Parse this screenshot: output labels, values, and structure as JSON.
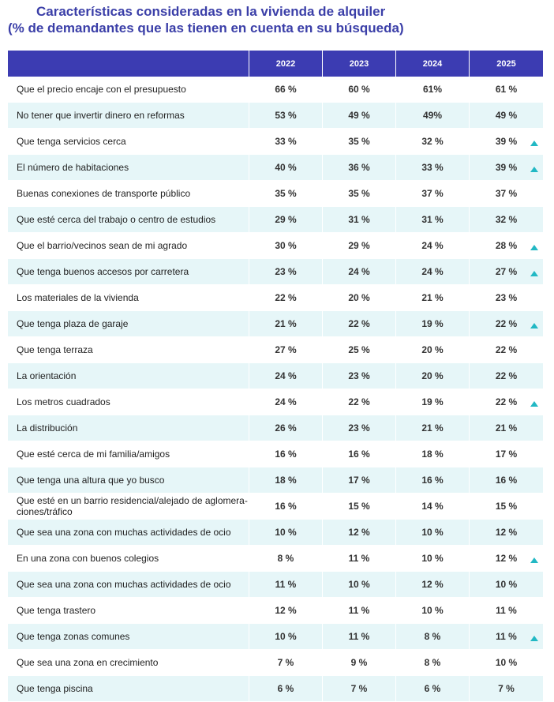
{
  "title": {
    "line1": "Características consideradas en la vivienda de alquiler",
    "line2": "(% de demandantes que las tienen en cuenta en su búsqueda)"
  },
  "columns": [
    "",
    "2022",
    "2023",
    "2024",
    "2025"
  ],
  "accent_color": "#3c3cb2",
  "increase_icon_color": "#22b8c4",
  "rows": [
    {
      "label": "Que el precio encaje con el presupuesto",
      "v2022": "66 %",
      "v2023": "60 %",
      "v2024": "61%",
      "v2025": "61 %",
      "up": false
    },
    {
      "label": "No tener que invertir dinero en reformas",
      "v2022": "53 %",
      "v2023": "49 %",
      "v2024": "49%",
      "v2025": "49 %",
      "up": false
    },
    {
      "label": "Que tenga servicios cerca",
      "v2022": "33 %",
      "v2023": "35 %",
      "v2024": "32 %",
      "v2025": "39 %",
      "up": true
    },
    {
      "label": "El número de habitaciones",
      "v2022": "40 %",
      "v2023": "36 %",
      "v2024": "33 %",
      "v2025": "39 %",
      "up": true
    },
    {
      "label": "Buenas conexiones de transporte público",
      "v2022": "35 %",
      "v2023": "35 %",
      "v2024": "37 %",
      "v2025": "37 %",
      "up": false
    },
    {
      "label": "Que esté cerca del trabajo o centro de estudios",
      "v2022": "29 %",
      "v2023": "31 %",
      "v2024": "31 %",
      "v2025": "32 %",
      "up": false
    },
    {
      "label": "Que el barrio/vecinos sean de mi agrado",
      "v2022": "30 %",
      "v2023": "29 %",
      "v2024": "24 %",
      "v2025": "28 %",
      "up": true
    },
    {
      "label": "Que tenga buenos accesos por carretera",
      "v2022": "23 %",
      "v2023": "24 %",
      "v2024": "24 %",
      "v2025": "27 %",
      "up": true
    },
    {
      "label": "Los materiales de la vivienda",
      "v2022": "22 %",
      "v2023": "20 %",
      "v2024": "21 %",
      "v2025": "23 %",
      "up": false
    },
    {
      "label": "Que tenga plaza de garaje",
      "v2022": "21 %",
      "v2023": "22 %",
      "v2024": "19 %",
      "v2025": "22 %",
      "up": true
    },
    {
      "label": "Que tenga terraza",
      "v2022": "27 %",
      "v2023": "25 %",
      "v2024": "20 %",
      "v2025": "22 %",
      "up": false
    },
    {
      "label": "La orientación",
      "v2022": "24 %",
      "v2023": "23 %",
      "v2024": "20 %",
      "v2025": "22 %",
      "up": false
    },
    {
      "label": "Los metros cuadrados",
      "v2022": "24 %",
      "v2023": "22 %",
      "v2024": "19 %",
      "v2025": "22 %",
      "up": true
    },
    {
      "label": "La distribución",
      "v2022": "26 %",
      "v2023": "23 %",
      "v2024": "21 %",
      "v2025": "21 %",
      "up": false
    },
    {
      "label": "Que esté cerca de mi familia/amigos",
      "v2022": "16 %",
      "v2023": "16 %",
      "v2024": "18 %",
      "v2025": "17 %",
      "up": false
    },
    {
      "label": "Que tenga una altura que yo busco",
      "v2022": "18 %",
      "v2023": "17 %",
      "v2024": "16 %",
      "v2025": "16 %",
      "up": false
    },
    {
      "label": "Que esté en un barrio residencial/alejado de aglomera-ciones/tráfico",
      "v2022": "16 %",
      "v2023": "15 %",
      "v2024": "14 %",
      "v2025": "15 %",
      "up": false
    },
    {
      "label": "Que sea una zona con muchas actividades de ocio",
      "v2022": "10 %",
      "v2023": "12 %",
      "v2024": "10 %",
      "v2025": "12 %",
      "up": false
    },
    {
      "label": "En una zona con buenos colegios",
      "v2022": "8 %",
      "v2023": "11 %",
      "v2024": "10 %",
      "v2025": "12 %",
      "up": true
    },
    {
      "label": "Que sea una zona con muchas actividades de ocio",
      "v2022": "11 %",
      "v2023": "10 %",
      "v2024": "12 %",
      "v2025": "10 %",
      "up": false
    },
    {
      "label": "Que tenga trastero",
      "v2022": "12 %",
      "v2023": "11 %",
      "v2024": "10 %",
      "v2025": "11 %",
      "up": false
    },
    {
      "label": "Que tenga zonas comunes",
      "v2022": "10 %",
      "v2023": "11 %",
      "v2024": "8 %",
      "v2025": "11 %",
      "up": true
    },
    {
      "label": "Que sea una zona en crecimiento",
      "v2022": "7 %",
      "v2023": "9 %",
      "v2024": "8 %",
      "v2025": "10 %",
      "up": false
    },
    {
      "label": "Que tenga piscina",
      "v2022": "6 %",
      "v2023": "7 %",
      "v2024": "6 %",
      "v2025": "7 %",
      "up": false
    }
  ]
}
